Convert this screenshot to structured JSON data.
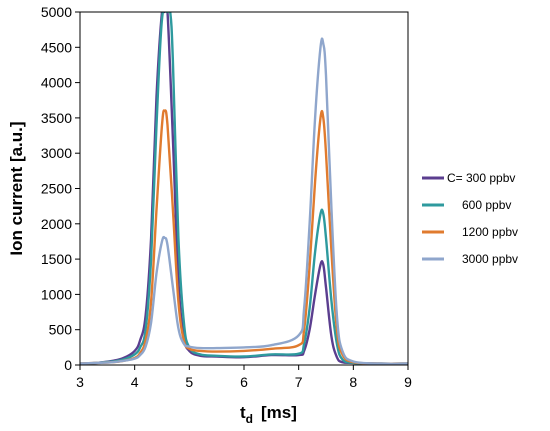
{
  "chart_data": {
    "type": "line",
    "xlabel": "t",
    "xlabel_sub": "d",
    "xlabel_unit": "[ms]",
    "ylabel": "Ion current  [a.u.]",
    "xlim": [
      3,
      9
    ],
    "ylim": [
      0,
      5000
    ],
    "xticks": [
      "3",
      "4",
      "5",
      "6",
      "7",
      "8",
      "9"
    ],
    "yticks": [
      "0",
      "500",
      "1000",
      "1500",
      "2000",
      "2500",
      "3000",
      "3500",
      "4000",
      "4500",
      "5000"
    ],
    "grid": false,
    "legend_position": "right",
    "series": [
      {
        "name": "C= 300 ppbv",
        "color": "#5b3e8f",
        "x": [
          3.0,
          3.3,
          3.6,
          3.8,
          4.0,
          4.1,
          4.2,
          4.3,
          4.4,
          4.5,
          4.55,
          4.6,
          4.7,
          4.8,
          4.9,
          5.0,
          5.2,
          5.5,
          6.0,
          6.5,
          7.0,
          7.1,
          7.2,
          7.3,
          7.4,
          7.45,
          7.5,
          7.6,
          7.7,
          7.8,
          8.0,
          8.5,
          9.0
        ],
        "y": [
          20,
          30,
          60,
          100,
          200,
          350,
          700,
          1800,
          3800,
          5000,
          5000,
          5000,
          3200,
          1200,
          400,
          200,
          130,
          120,
          110,
          140,
          140,
          200,
          500,
          1000,
          1420,
          1420,
          1100,
          400,
          110,
          40,
          30,
          20,
          20
        ]
      },
      {
        "name": "600 ppbv",
        "color": "#2e9a9e",
        "x": [
          3.0,
          3.3,
          3.6,
          3.8,
          4.0,
          4.1,
          4.2,
          4.3,
          4.4,
          4.5,
          4.6,
          4.65,
          4.7,
          4.8,
          4.9,
          5.0,
          5.2,
          5.5,
          6.0,
          6.5,
          7.0,
          7.1,
          7.2,
          7.3,
          7.4,
          7.45,
          7.5,
          7.6,
          7.7,
          7.8,
          8.0,
          8.5,
          9.0
        ],
        "y": [
          20,
          30,
          50,
          80,
          150,
          250,
          500,
          1500,
          3400,
          4900,
          5000,
          5000,
          4300,
          1800,
          600,
          250,
          150,
          130,
          120,
          150,
          160,
          300,
          800,
          1600,
          2140,
          2140,
          1800,
          900,
          300,
          80,
          30,
          20,
          20
        ]
      },
      {
        "name": "1200 ppbv",
        "color": "#e07b2f",
        "x": [
          3.0,
          3.3,
          3.6,
          3.8,
          4.0,
          4.1,
          4.2,
          4.3,
          4.4,
          4.5,
          4.55,
          4.6,
          4.7,
          4.8,
          4.9,
          5.0,
          5.2,
          5.5,
          6.0,
          6.5,
          7.0,
          7.1,
          7.2,
          7.3,
          7.4,
          7.45,
          7.5,
          7.6,
          7.7,
          7.8,
          8.0,
          8.5,
          9.0
        ],
        "y": [
          20,
          30,
          40,
          60,
          100,
          170,
          350,
          900,
          2200,
          3400,
          3600,
          3400,
          2200,
          900,
          350,
          230,
          200,
          190,
          200,
          230,
          280,
          500,
          1400,
          2600,
          3500,
          3500,
          3000,
          1600,
          500,
          150,
          40,
          20,
          20
        ]
      },
      {
        "name": "3000 ppbv",
        "color": "#8fa6cc",
        "x": [
          3.0,
          3.3,
          3.6,
          3.8,
          4.0,
          4.1,
          4.2,
          4.3,
          4.4,
          4.5,
          4.55,
          4.6,
          4.7,
          4.8,
          4.9,
          5.0,
          5.2,
          5.5,
          6.0,
          6.5,
          7.0,
          7.1,
          7.2,
          7.3,
          7.4,
          7.45,
          7.5,
          7.6,
          7.7,
          7.8,
          8.0,
          8.5,
          9.0
        ],
        "y": [
          20,
          30,
          40,
          60,
          90,
          140,
          260,
          600,
          1300,
          1750,
          1800,
          1700,
          1100,
          520,
          300,
          260,
          240,
          240,
          250,
          280,
          420,
          800,
          2000,
          3500,
          4500,
          4550,
          4100,
          2200,
          700,
          200,
          50,
          20,
          20
        ]
      }
    ]
  }
}
